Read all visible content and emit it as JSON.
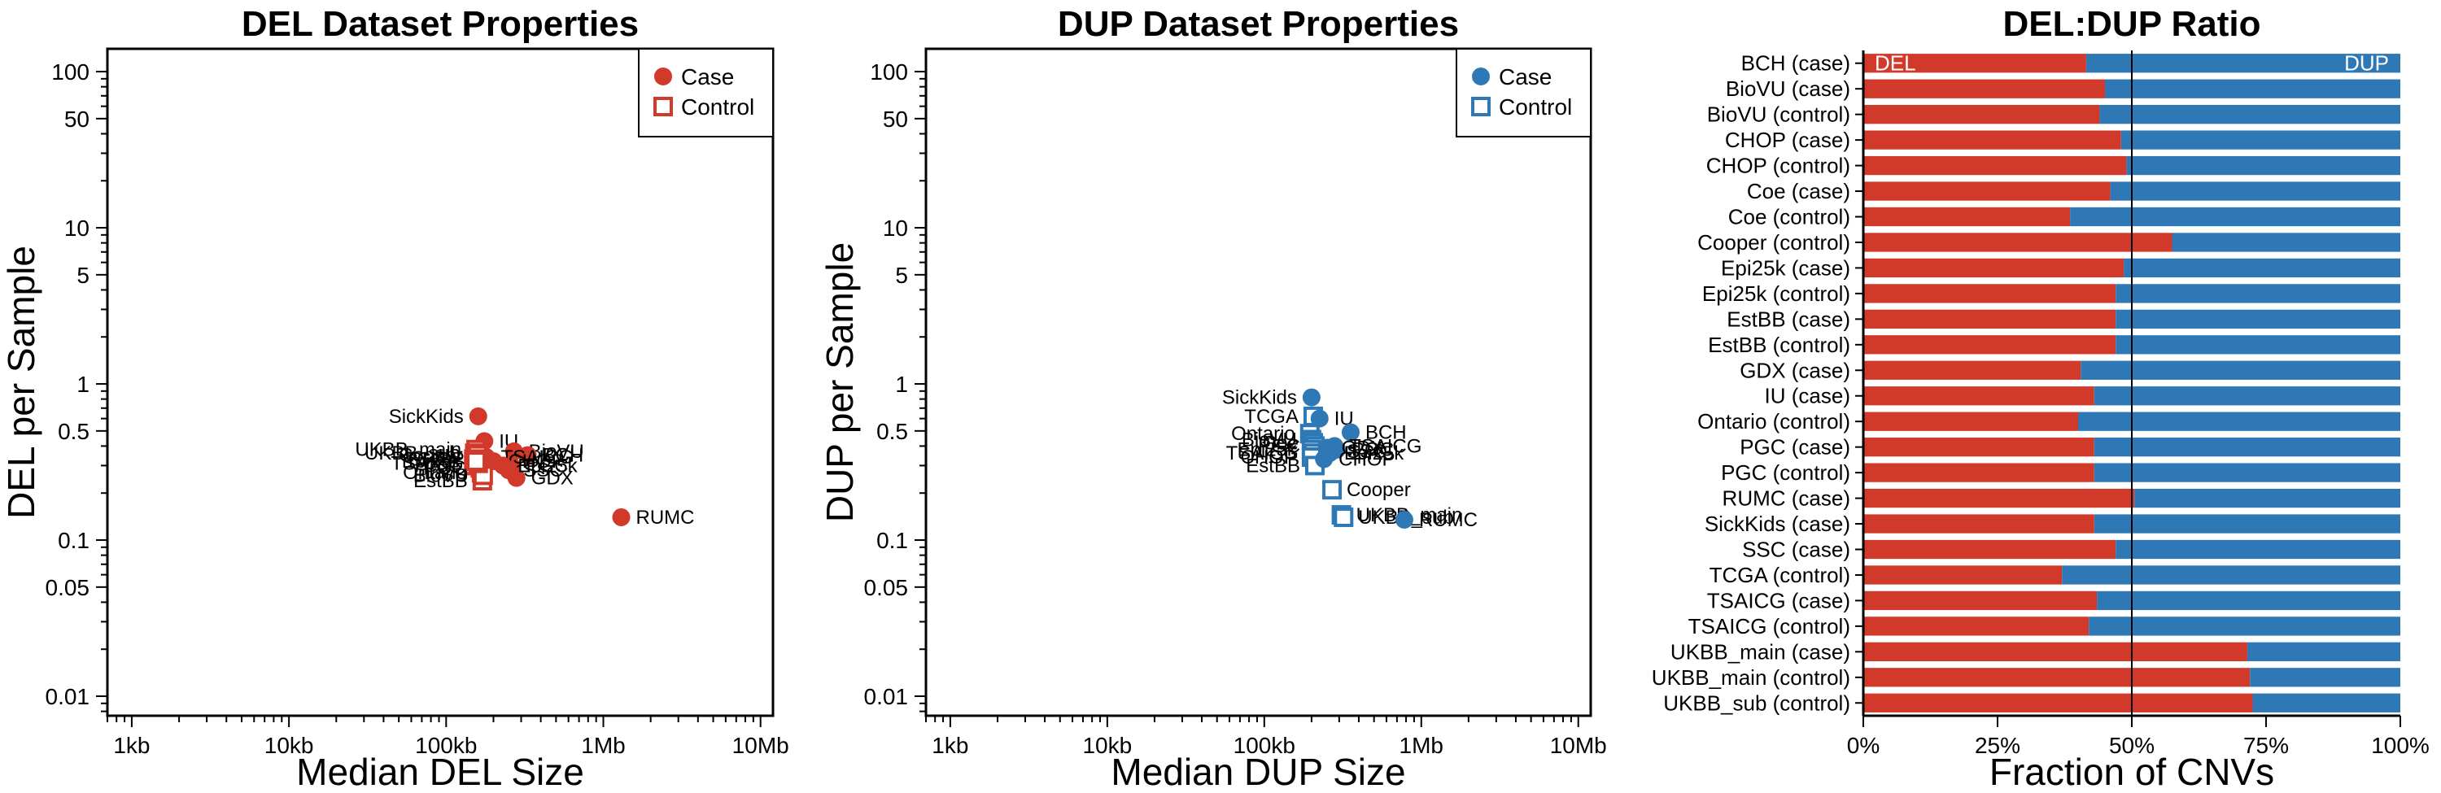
{
  "colors": {
    "del": "#D13A2B",
    "dup": "#2E79B5",
    "axis": "#000000"
  },
  "chart_data": [
    {
      "type": "scatter",
      "title": "DEL Dataset Properties",
      "xlabel": "Median DEL Size",
      "ylabel": "DEL per Sample",
      "xscale": "log",
      "yscale": "log",
      "xlim": [
        700,
        12000000
      ],
      "ylim": [
        0.0075,
        140
      ],
      "xticks": [
        1000,
        10000,
        100000,
        1000000,
        10000000
      ],
      "xtick_labels": [
        "1kb",
        "10kb",
        "100kb",
        "1Mb",
        "10Mb"
      ],
      "yticks": [
        0.01,
        0.05,
        0.1,
        0.5,
        1,
        5,
        10,
        50,
        100
      ],
      "ytick_labels": [
        "0.01",
        "0.05",
        "0.1",
        "0.5",
        "1",
        "5",
        "10",
        "50",
        "100"
      ],
      "legend": {
        "position": "top-right",
        "entries": [
          "Case",
          "Control"
        ]
      },
      "points": [
        {
          "label": "SickKids",
          "x": 160000,
          "y": 0.62,
          "kind": "case",
          "label_side": "left"
        },
        {
          "label": "IU",
          "x": 175000,
          "y": 0.43,
          "kind": "case",
          "label_side": "right"
        },
        {
          "label": "BioVU",
          "x": 270000,
          "y": 0.37,
          "kind": "case",
          "label_side": "right"
        },
        {
          "label": "BCH",
          "x": 330000,
          "y": 0.35,
          "kind": "case",
          "label_side": "right"
        },
        {
          "label": "RUMC",
          "x": 1300000,
          "y": 0.14,
          "kind": "case",
          "label_side": "right"
        },
        {
          "label": "PGC",
          "x": 260000,
          "y": 0.3,
          "kind": "case",
          "label_side": "right"
        },
        {
          "label": "CHOP",
          "x": 200000,
          "y": 0.32,
          "kind": "case",
          "label_side": "right"
        },
        {
          "label": "TSAICG",
          "x": 180000,
          "y": 0.34,
          "kind": "case",
          "label_side": "right"
        },
        {
          "label": "GDX",
          "x": 280000,
          "y": 0.25,
          "kind": "case",
          "label_side": "right"
        },
        {
          "label": "SSC",
          "x": 250000,
          "y": 0.28,
          "kind": "case",
          "label_side": "right"
        },
        {
          "label": "Epi25k",
          "x": 230000,
          "y": 0.3,
          "kind": "case",
          "label_side": "right"
        },
        {
          "label": "UKBB_main",
          "x": 155000,
          "y": 0.38,
          "kind": "control",
          "label_side": "left"
        },
        {
          "label": "UKBB_sub",
          "x": 152000,
          "y": 0.36,
          "kind": "control",
          "label_side": "left"
        },
        {
          "label": "Cooper",
          "x": 158000,
          "y": 0.35,
          "kind": "control",
          "label_side": "left"
        },
        {
          "label": "Coe",
          "x": 150000,
          "y": 0.3,
          "kind": "control",
          "label_side": "left"
        },
        {
          "label": "PGC",
          "x": 165000,
          "y": 0.29,
          "kind": "control",
          "label_side": "left"
        },
        {
          "label": "Ontario",
          "x": 168000,
          "y": 0.27,
          "kind": "control",
          "label_side": "left"
        },
        {
          "label": "CHOP",
          "x": 162000,
          "y": 0.33,
          "kind": "control",
          "label_side": "left"
        },
        {
          "label": "EstBB",
          "x": 170000,
          "y": 0.24,
          "kind": "control",
          "label_side": "left"
        },
        {
          "label": "BioVU",
          "x": 172000,
          "y": 0.26,
          "kind": "control",
          "label_side": "left"
        },
        {
          "label": "TSAICG",
          "x": 160000,
          "y": 0.31,
          "kind": "control",
          "label_side": "left"
        },
        {
          "label": "TCGA",
          "x": 150000,
          "y": 0.33,
          "kind": "control",
          "label_side": "left"
        },
        {
          "label": "Epi25k",
          "x": 155000,
          "y": 0.32,
          "kind": "control",
          "label_side": "left"
        }
      ]
    },
    {
      "type": "scatter",
      "title": "DUP Dataset Properties",
      "xlabel": "Median DUP Size",
      "ylabel": "DUP per Sample",
      "xscale": "log",
      "yscale": "log",
      "xlim": [
        700,
        12000000
      ],
      "ylim": [
        0.0075,
        140
      ],
      "xticks": [
        1000,
        10000,
        100000,
        1000000,
        10000000
      ],
      "xtick_labels": [
        "1kb",
        "10kb",
        "100kb",
        "1Mb",
        "10Mb"
      ],
      "yticks": [
        0.01,
        0.05,
        0.1,
        0.5,
        1,
        5,
        10,
        50,
        100
      ],
      "ytick_labels": [
        "0.01",
        "0.05",
        "0.1",
        "0.5",
        "1",
        "5",
        "10",
        "50",
        "100"
      ],
      "legend": {
        "position": "top-right",
        "entries": [
          "Case",
          "Control"
        ]
      },
      "points": [
        {
          "label": "SickKids",
          "x": 200000,
          "y": 0.82,
          "kind": "case",
          "label_side": "left"
        },
        {
          "label": "TCGA",
          "x": 205000,
          "y": 0.62,
          "kind": "control",
          "label_side": "left"
        },
        {
          "label": "IU",
          "x": 225000,
          "y": 0.6,
          "kind": "case",
          "label_side": "right"
        },
        {
          "label": "BCH",
          "x": 355000,
          "y": 0.49,
          "kind": "case",
          "label_side": "right"
        },
        {
          "label": "Ontario",
          "x": 195000,
          "y": 0.48,
          "kind": "control",
          "label_side": "left"
        },
        {
          "label": "BioVU",
          "x": 200000,
          "y": 0.44,
          "kind": "control",
          "label_side": "left"
        },
        {
          "label": "Coe",
          "x": 205000,
          "y": 0.42,
          "kind": "control",
          "label_side": "left"
        },
        {
          "label": "PGC",
          "x": 210000,
          "y": 0.4,
          "kind": "control",
          "label_side": "left"
        },
        {
          "label": "Epi25k",
          "x": 200000,
          "y": 0.38,
          "kind": "control",
          "label_side": "left"
        },
        {
          "label": "TSAICG",
          "x": 205000,
          "y": 0.36,
          "kind": "control",
          "label_side": "left"
        },
        {
          "label": "CHOP",
          "x": 200000,
          "y": 0.34,
          "kind": "control",
          "label_side": "left"
        },
        {
          "label": "EstBB",
          "x": 210000,
          "y": 0.3,
          "kind": "control",
          "label_side": "left"
        },
        {
          "label": "TSAICG",
          "x": 280000,
          "y": 0.4,
          "kind": "case",
          "label_side": "right"
        },
        {
          "label": "PGC",
          "x": 290000,
          "y": 0.38,
          "kind": "case",
          "label_side": "right"
        },
        {
          "label": "SSC",
          "x": 270000,
          "y": 0.37,
          "kind": "case",
          "label_side": "right"
        },
        {
          "label": "GDX",
          "x": 250000,
          "y": 0.39,
          "kind": "case",
          "label_side": "right"
        },
        {
          "label": "Epi25k",
          "x": 260000,
          "y": 0.36,
          "kind": "case",
          "label_side": "right"
        },
        {
          "label": "CHOP",
          "x": 240000,
          "y": 0.33,
          "kind": "case",
          "label_side": "right"
        },
        {
          "label": "Cooper",
          "x": 270000,
          "y": 0.21,
          "kind": "control",
          "label_side": "right"
        },
        {
          "label": "UKBB_main",
          "x": 310000,
          "y": 0.145,
          "kind": "control",
          "label_side": "right"
        },
        {
          "label": "UKBB_sub",
          "x": 320000,
          "y": 0.14,
          "kind": "control",
          "label_side": "right"
        },
        {
          "label": "RUMC",
          "x": 780000,
          "y": 0.135,
          "kind": "case",
          "label_side": "right"
        }
      ]
    },
    {
      "type": "bar",
      "orientation": "horizontal-stacked",
      "title": "DEL:DUP Ratio",
      "xlabel": "Fraction of CNVs",
      "xticks": [
        0,
        0.25,
        0.5,
        0.75,
        1.0
      ],
      "xtick_labels": [
        "0%",
        "25%",
        "50%",
        "75%",
        "100%"
      ],
      "reference_line": 0.5,
      "series_labels": [
        "DEL",
        "DUP"
      ],
      "categories": [
        "BCH (case)",
        "BioVU (case)",
        "BioVU (control)",
        "CHOP (case)",
        "CHOP (control)",
        "Coe (case)",
        "Coe (control)",
        "Cooper (control)",
        "Epi25k (case)",
        "Epi25k (control)",
        "EstBB (case)",
        "EstBB (control)",
        "GDX (case)",
        "IU (case)",
        "Ontario (control)",
        "PGC (case)",
        "PGC (control)",
        "RUMC (case)",
        "SickKids (case)",
        "SSC (case)",
        "TCGA (control)",
        "TSAICG (case)",
        "TSAICG (control)",
        "UKBB_main (case)",
        "UKBB_main (control)",
        "UKBB_sub (control)"
      ],
      "del_fraction": [
        0.415,
        0.45,
        0.44,
        0.48,
        0.49,
        0.46,
        0.385,
        0.575,
        0.485,
        0.47,
        0.47,
        0.47,
        0.405,
        0.43,
        0.4,
        0.43,
        0.43,
        0.505,
        0.43,
        0.47,
        0.37,
        0.435,
        0.42,
        0.715,
        0.72,
        0.725
      ]
    }
  ]
}
